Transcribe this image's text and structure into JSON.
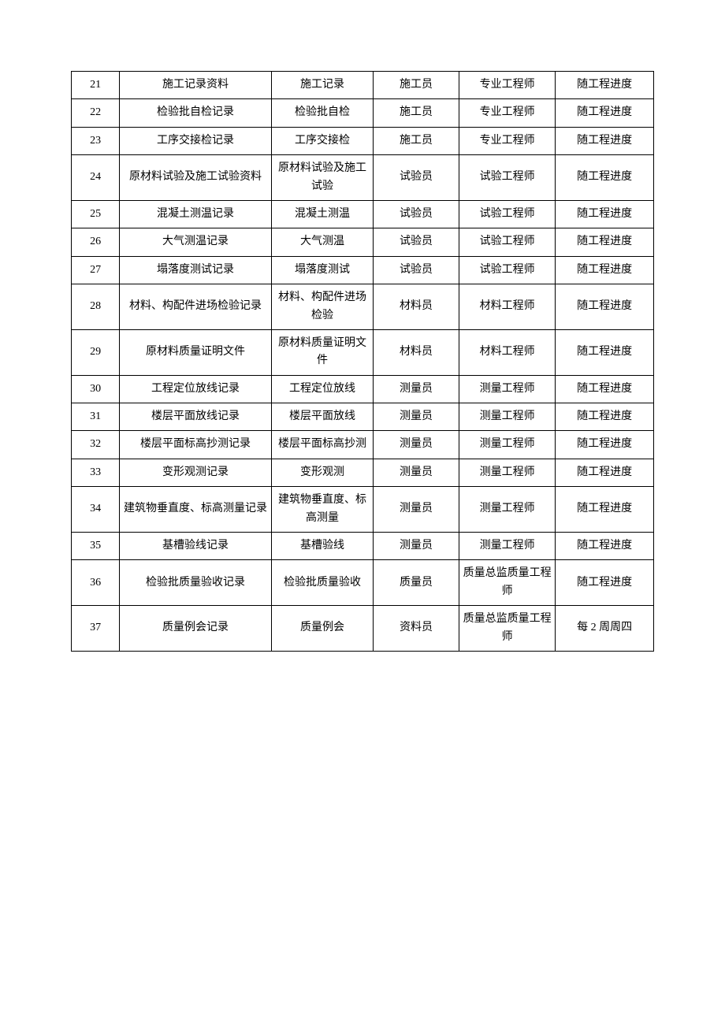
{
  "table": {
    "background_color": "#ffffff",
    "border_color": "#000000",
    "text_color": "#000000",
    "font_size": 14,
    "rows": [
      {
        "num": "21",
        "name": "施工记录资料",
        "type": "施工记录",
        "person": "施工员",
        "engineer": "专业工程师",
        "timing": "随工程进度"
      },
      {
        "num": "22",
        "name": "检验批自检记录",
        "type": "检验批自检",
        "person": "施工员",
        "engineer": "专业工程师",
        "timing": "随工程进度"
      },
      {
        "num": "23",
        "name": "工序交接检记录",
        "type": "工序交接检",
        "person": "施工员",
        "engineer": "专业工程师",
        "timing": "随工程进度"
      },
      {
        "num": "24",
        "name": "原材料试验及施工试验资料",
        "type": "原材料试验及施工试验",
        "person": "试验员",
        "engineer": "试验工程师",
        "timing": "随工程进度"
      },
      {
        "num": "25",
        "name": "混凝土测温记录",
        "type": "混凝土测温",
        "person": "试验员",
        "engineer": "试验工程师",
        "timing": "随工程进度"
      },
      {
        "num": "26",
        "name": "大气测温记录",
        "type": "大气测温",
        "person": "试验员",
        "engineer": "试验工程师",
        "timing": "随工程进度"
      },
      {
        "num": "27",
        "name": "塌落度测试记录",
        "type": "塌落度测试",
        "person": "试验员",
        "engineer": "试验工程师",
        "timing": "随工程进度"
      },
      {
        "num": "28",
        "name": "材料、构配件进场检验记录",
        "type": "材料、构配件进场检验",
        "person": "材料员",
        "engineer": "材料工程师",
        "timing": "随工程进度"
      },
      {
        "num": "29",
        "name": "原材料质量证明文件",
        "type": "原材料质量证明文件",
        "person": "材料员",
        "engineer": "材料工程师",
        "timing": "随工程进度"
      },
      {
        "num": "30",
        "name": "工程定位放线记录",
        "type": "工程定位放线",
        "person": "测量员",
        "engineer": "测量工程师",
        "timing": "随工程进度"
      },
      {
        "num": "31",
        "name": "楼层平面放线记录",
        "type": "楼层平面放线",
        "person": "测量员",
        "engineer": "测量工程师",
        "timing": "随工程进度"
      },
      {
        "num": "32",
        "name": "楼层平面标高抄测记录",
        "type": "楼层平面标高抄测",
        "person": "测量员",
        "engineer": "测量工程师",
        "timing": "随工程进度"
      },
      {
        "num": "33",
        "name": "变形观测记录",
        "type": "变形观测",
        "person": "测量员",
        "engineer": "测量工程师",
        "timing": "随工程进度"
      },
      {
        "num": "34",
        "name": "建筑物垂直度、标高测量记录",
        "type": "建筑物垂直度、标高测量",
        "person": "测量员",
        "engineer": "测量工程师",
        "timing": "随工程进度"
      },
      {
        "num": "35",
        "name": "基槽验线记录",
        "type": "基槽验线",
        "person": "测量员",
        "engineer": "测量工程师",
        "timing": "随工程进度"
      },
      {
        "num": "36",
        "name": "检验批质量验收记录",
        "type": "检验批质量验收",
        "person": "质量员",
        "engineer": "质量总监质量工程师",
        "timing": "随工程进度"
      },
      {
        "num": "37",
        "name": "质量例会记录",
        "type": "质量例会",
        "person": "资料员",
        "engineer": "质量总监质量工程师",
        "timing": "每 2 周周四"
      }
    ]
  }
}
